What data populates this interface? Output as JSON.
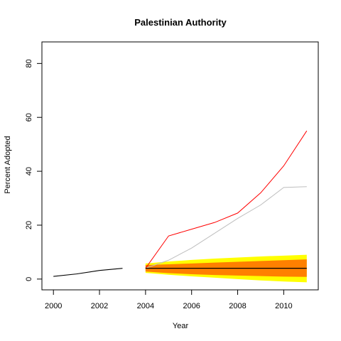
{
  "chart_data": {
    "type": "line",
    "title": "Palestinian Authority",
    "xlabel": "Year",
    "ylabel": "Percent Adopted",
    "xlim": [
      1999.5,
      2011.5
    ],
    "ylim": [
      -4,
      88
    ],
    "x_ticks": [
      2000,
      2002,
      2004,
      2006,
      2008,
      2010
    ],
    "y_ticks": [
      0,
      20,
      40,
      60,
      80
    ],
    "grid": false,
    "legend": "none",
    "observed": {
      "color": "#000000",
      "x": [
        2000,
        2001,
        2002,
        2003
      ],
      "y": [
        1,
        1.9,
        3.2,
        4.0
      ]
    },
    "forecast_bands": {
      "x": [
        2004,
        2005,
        2006,
        2007,
        2008,
        2009,
        2010,
        2011
      ],
      "outer": {
        "color": "#ffff00",
        "lower": [
          2.3,
          1.6,
          1.0,
          0.5,
          0.0,
          -0.5,
          -0.9,
          -1.2
        ],
        "upper": [
          5.8,
          6.5,
          7.1,
          7.6,
          8.0,
          8.4,
          8.7,
          9.0
        ]
      },
      "inner": {
        "color": "#ff8000",
        "lower": [
          2.8,
          2.2,
          1.8,
          1.5,
          1.3,
          1.1,
          0.9,
          0.8
        ],
        "upper": [
          5.2,
          5.5,
          5.8,
          6.1,
          6.4,
          6.7,
          7.0,
          7.3
        ]
      }
    },
    "series": [
      {
        "color": "#ff0000",
        "x": [
          2004,
          2005,
          2006,
          2007,
          2008,
          2009,
          2010,
          2011
        ],
        "y": [
          4.0,
          16.0,
          18.5,
          21.0,
          24.5,
          32.0,
          42.0,
          55.0
        ]
      },
      {
        "color": "#bebebe",
        "x": [
          2004,
          2005,
          2006,
          2007,
          2008,
          2009,
          2010,
          2011
        ],
        "y": [
          4.0,
          7.0,
          11.5,
          17.0,
          22.5,
          27.5,
          34.0,
          34.3
        ]
      },
      {
        "color": "#000000",
        "x": [
          2004,
          2005,
          2006,
          2007,
          2008,
          2009,
          2010,
          2011
        ],
        "y": [
          4.0,
          4.0,
          4.0,
          4.0,
          4.0,
          4.0,
          4.0,
          4.0
        ]
      }
    ]
  }
}
